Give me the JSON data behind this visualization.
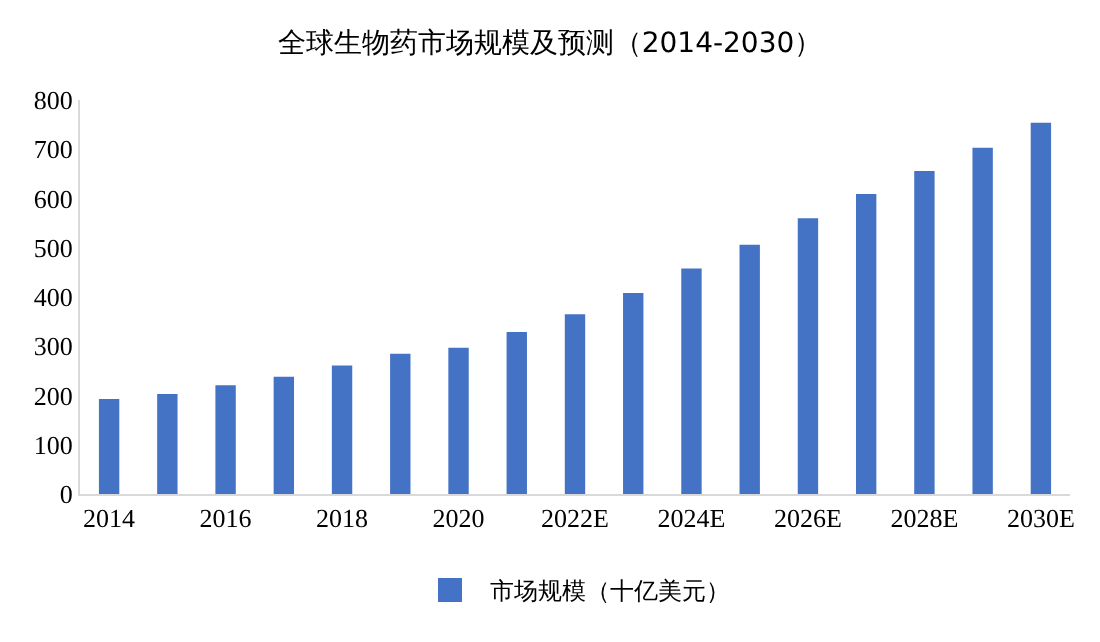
{
  "chart_data": {
    "type": "bar",
    "title": "全球生物药市场规模及预测（2014-2030）",
    "categories": [
      "2014",
      null,
      "2016",
      null,
      "2018",
      null,
      "2020",
      null,
      "2022E",
      null,
      "2024E",
      null,
      "2026E",
      null,
      "2028E",
      null,
      "2030E"
    ],
    "series": [
      {
        "name": "市场规模（十亿美元）",
        "color": "#4472c4",
        "values": [
          193,
          203,
          221,
          238,
          261,
          285,
          297,
          329,
          365,
          408,
          458,
          506,
          560,
          609,
          656,
          703,
          754
        ]
      }
    ],
    "ylim": [
      0,
      800
    ],
    "yticks": [
      0,
      100,
      200,
      300,
      400,
      500,
      600,
      700,
      800
    ],
    "grid": false,
    "legend": "bottom"
  }
}
